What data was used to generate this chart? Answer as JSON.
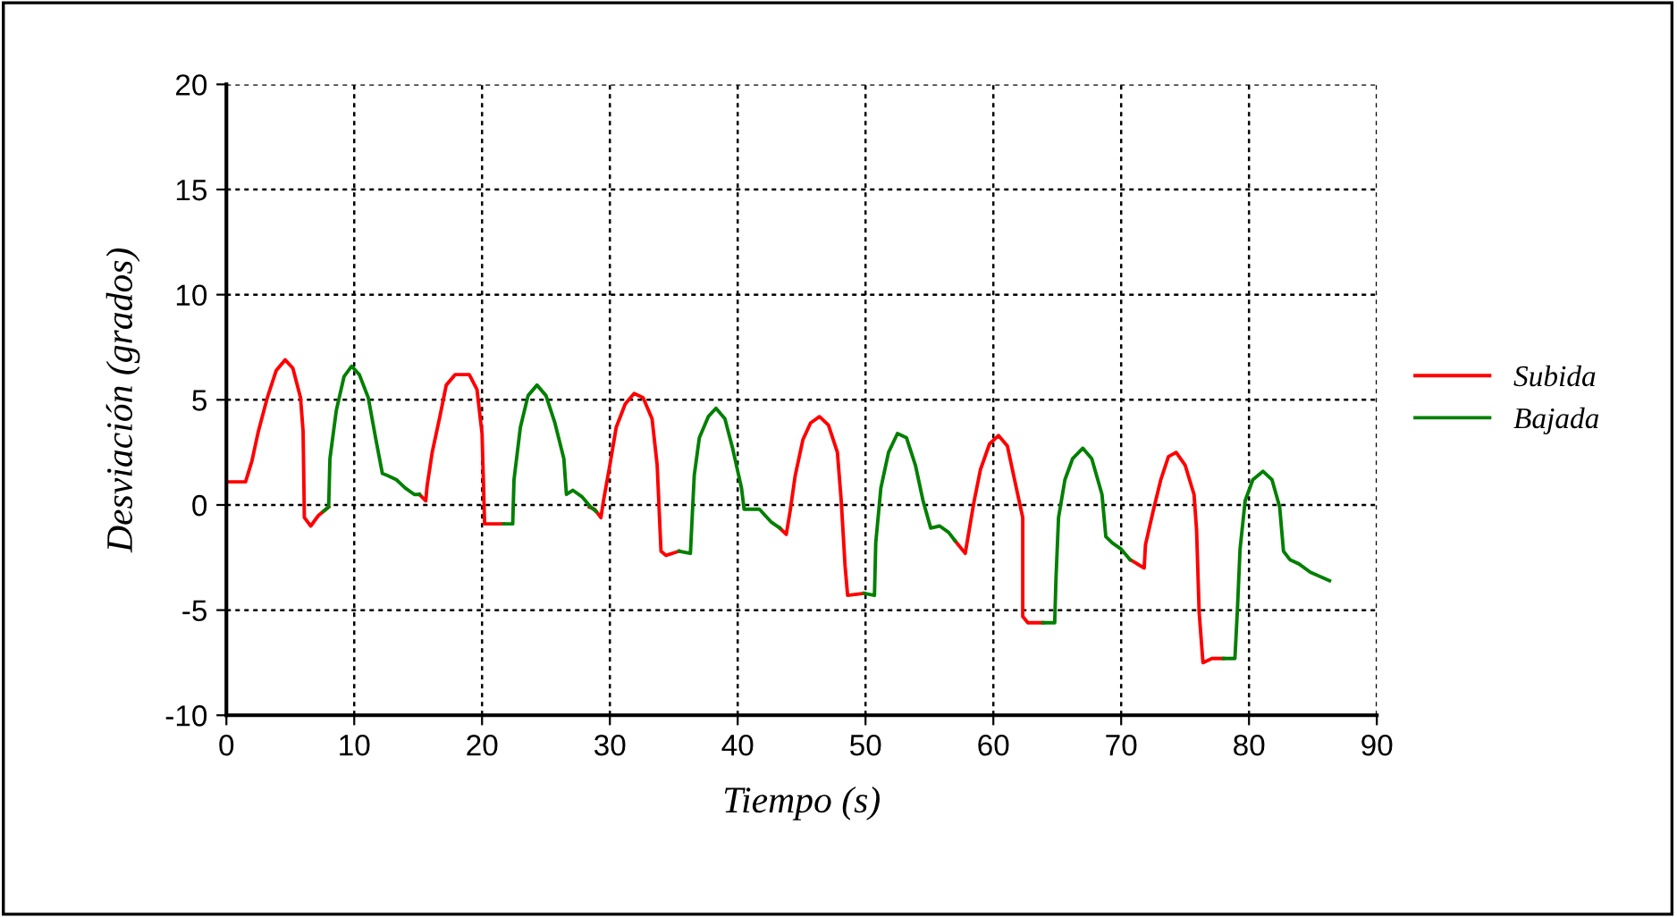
{
  "chart_data": {
    "type": "line",
    "xlabel": "Tiempo (s)",
    "ylabel": "Desviación (grados)",
    "xlim": [
      0,
      90
    ],
    "xticks": [
      0,
      10,
      20,
      30,
      40,
      50,
      60,
      70,
      80,
      90
    ],
    "ylim": [
      -10,
      20
    ],
    "yticks": [
      -10,
      -5,
      0,
      5,
      10,
      15,
      20
    ],
    "grid": true,
    "legend": "right",
    "marker": "none",
    "line_style": "solid",
    "series": [
      {
        "name": "Subida",
        "color": "#ff0000",
        "x": [
          0,
          1.5,
          2,
          2.5,
          3.2,
          3.9,
          4.6,
          5.2,
          5.8,
          6,
          6.1,
          6.6,
          7.2,
          7.6,
          8,
          null,
          15.1,
          15.6,
          15.7,
          16.1,
          16.7,
          17.2,
          17.9,
          19,
          19.6,
          20,
          20.2,
          21.7,
          null,
          28.4,
          28.8,
          29.3,
          29.5,
          30,
          30.5,
          31.2,
          31.9,
          32.6,
          33.3,
          33.7,
          34,
          34.4,
          35.4,
          null,
          43.3,
          43.8,
          44.1,
          44.5,
          45.1,
          45.7,
          46.4,
          47.1,
          47.8,
          48.1,
          48.4,
          48.6,
          49.9,
          null,
          57,
          57.8,
          58.5,
          59,
          59.7,
          60.4,
          61.1,
          61.8,
          62.3,
          62.3,
          62.7,
          63.9,
          null,
          70.7,
          71.8,
          71.9,
          72.5,
          73.1,
          73.7,
          74.3,
          75,
          75.7,
          75.9,
          76.1,
          76.4,
          77.1,
          78
        ],
        "values": [
          1.1,
          1.1,
          2.1,
          3.5,
          5.1,
          6.4,
          6.9,
          6.5,
          5.1,
          3.5,
          -0.6,
          -1,
          -0.5,
          -0.3,
          -0.1,
          null,
          0.5,
          0.2,
          0.9,
          2.5,
          4.2,
          5.7,
          6.2,
          6.2,
          5.5,
          3.4,
          -0.9,
          -0.9,
          null,
          -0.1,
          -0.2,
          -0.6,
          0.2,
          1.9,
          3.7,
          4.8,
          5.3,
          5.1,
          4.1,
          1.9,
          -2.2,
          -2.4,
          -2.2,
          null,
          -1.1,
          -1.4,
          -0.3,
          1.4,
          3.1,
          3.9,
          4.2,
          3.8,
          2.5,
          0.2,
          -2.9,
          -4.3,
          -4.2,
          null,
          -1.7,
          -2.3,
          0.2,
          1.7,
          2.9,
          3.3,
          2.8,
          0.8,
          -0.6,
          -5.3,
          -5.6,
          -5.6,
          null,
          -2.6,
          -3.0,
          -1.9,
          -0.3,
          1.2,
          2.3,
          2.5,
          1.9,
          0.5,
          -1.2,
          -5.1,
          -7.5,
          -7.3,
          -7.3
        ]
      },
      {
        "name": "Bajada",
        "color": "#008000",
        "x": [
          7.6,
          8,
          8.1,
          8.6,
          9.2,
          9.8,
          10.4,
          11.1,
          11.7,
          12.2,
          12.6,
          13.3,
          14,
          14.7,
          15.1,
          null,
          21.7,
          22.4,
          22.5,
          23,
          23.6,
          24.3,
          25,
          25.7,
          26.4,
          26.6,
          27.1,
          27.8,
          28.5,
          28.9,
          null,
          35.4,
          36.3,
          36.6,
          37,
          37.7,
          38.3,
          39,
          39.6,
          40.3,
          40.5,
          41.7,
          42.6,
          43.3,
          null,
          49.9,
          50.7,
          50.8,
          51.2,
          51.8,
          52.5,
          53.2,
          53.9,
          54.5,
          55.1,
          55.8,
          56.5,
          57,
          null,
          63.9,
          64.8,
          64.9,
          65.1,
          65.6,
          66.2,
          67,
          67.7,
          68.5,
          68.8,
          69.3,
          70,
          70.7,
          null,
          78,
          78.9,
          79.1,
          79.3,
          79.7,
          80.3,
          81.1,
          81.8,
          82.4,
          82.7,
          83.2,
          83.9,
          84.8,
          86.3
        ],
        "values": [
          -0.3,
          -0.1,
          2.2,
          4.5,
          6.1,
          6.6,
          6.2,
          5.1,
          3.1,
          1.5,
          1.4,
          1.2,
          0.8,
          0.5,
          0.5,
          null,
          -0.9,
          -0.9,
          1.2,
          3.7,
          5.2,
          5.7,
          5.2,
          3.9,
          2.2,
          0.5,
          0.7,
          0.4,
          -0.1,
          -0.3,
          null,
          -2.2,
          -2.3,
          1.4,
          3.2,
          4.2,
          4.6,
          4.1,
          2.7,
          0.8,
          -0.2,
          -0.2,
          -0.8,
          -1.1,
          null,
          -4.2,
          -4.3,
          -1.8,
          0.8,
          2.5,
          3.4,
          3.2,
          1.9,
          0.2,
          -1.1,
          -1.0,
          -1.3,
          -1.7,
          null,
          -5.6,
          -5.6,
          -3.5,
          -0.6,
          1.2,
          2.2,
          2.7,
          2.2,
          0.5,
          -1.5,
          -1.8,
          -2.1,
          -2.6,
          null,
          -7.3,
          -7.3,
          -4.9,
          -2.1,
          0.2,
          1.2,
          1.6,
          1.2,
          -0.1,
          -2.2,
          -2.6,
          -2.8,
          -3.2,
          -3.6
        ]
      }
    ]
  }
}
